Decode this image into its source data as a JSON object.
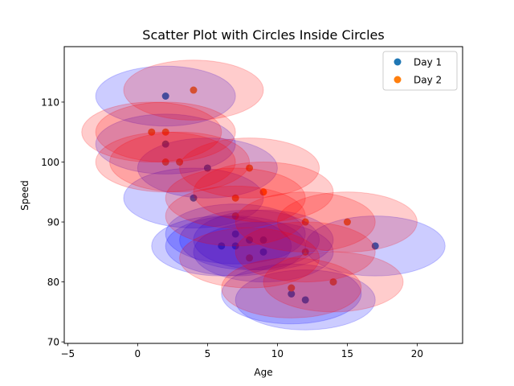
{
  "chart_data": {
    "type": "scatter",
    "title": "Scatter Plot with Circles Inside Circles",
    "xlabel": "Age",
    "ylabel": "Speed",
    "xlim": [
      -5.25,
      23.25
    ],
    "ylim": [
      69.75,
      119.25
    ],
    "xticks": [
      -5,
      0,
      5,
      10,
      15,
      20
    ],
    "yticks": [
      70,
      80,
      90,
      100,
      110
    ],
    "grid": false,
    "legend_position": "top-right",
    "series": [
      {
        "name": "Day 1",
        "color": "#1f77b4",
        "ring_color": "#0000ff",
        "points": [
          [
            5,
            99
          ],
          [
            7,
            86
          ],
          [
            8,
            87
          ],
          [
            7,
            88
          ],
          [
            2,
            111
          ],
          [
            17,
            86
          ],
          [
            2,
            103
          ],
          [
            9,
            87
          ],
          [
            4,
            94
          ],
          [
            11,
            78
          ],
          [
            12,
            77
          ],
          [
            9,
            85
          ],
          [
            6,
            86
          ]
        ]
      },
      {
        "name": "Day 2",
        "color": "#ff7f0e",
        "ring_color": "#ff0000",
        "points": [
          [
            2,
            100
          ],
          [
            2,
            105
          ],
          [
            8,
            84
          ],
          [
            1,
            105
          ],
          [
            15,
            90
          ],
          [
            8,
            99
          ],
          [
            12,
            90
          ],
          [
            9,
            95
          ],
          [
            7,
            94
          ],
          [
            3,
            100
          ],
          [
            11,
            79
          ],
          [
            12,
            85
          ],
          [
            14,
            80
          ],
          [
            4,
            112
          ],
          [
            7,
            91
          ]
        ]
      }
    ],
    "circle_radius_x": 5,
    "circle_radius_y": 5
  }
}
